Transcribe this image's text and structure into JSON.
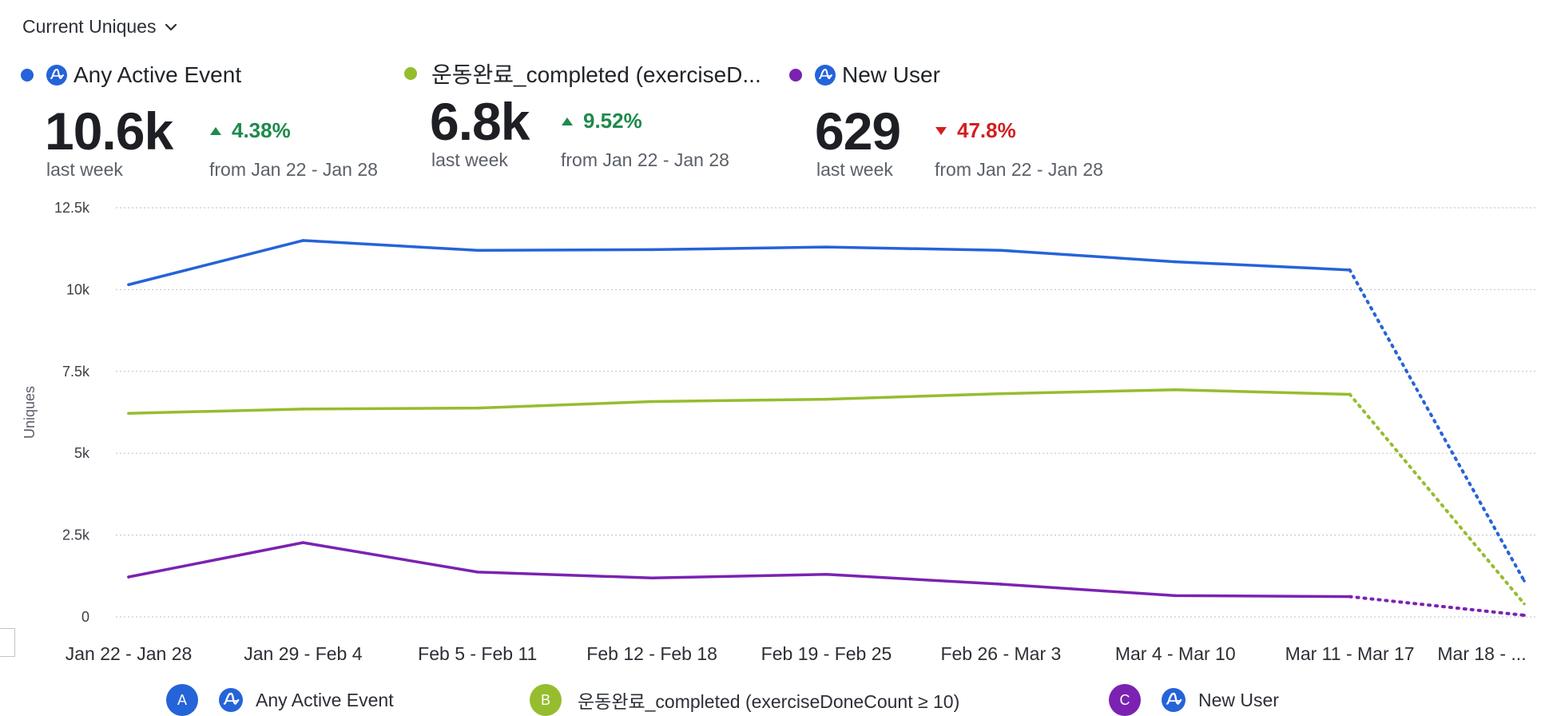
{
  "header": {
    "metric_selector": "Current Uniques"
  },
  "kpis": [
    {
      "name": "Any Active Event",
      "dot_color": "#2563d9",
      "value": "10.6k",
      "period": "last week",
      "delta": "4.38%",
      "direction": "up",
      "delta_color": "#1e8a4c",
      "compare": "from Jan 22 - Jan 28"
    },
    {
      "name": "운동완료_completed (exerciseD...",
      "dot_color": "#95bd2e",
      "value": "6.8k",
      "period": "last week",
      "delta": "9.52%",
      "direction": "up",
      "delta_color": "#1e8a4c",
      "compare": "from Jan 22 - Jan 28"
    },
    {
      "name": "New User",
      "dot_color": "#7b22b2",
      "value": "629",
      "period": "last week",
      "delta": "47.8%",
      "direction": "down",
      "delta_color": "#d21f1f",
      "compare": "from Jan 22 - Jan 28"
    }
  ],
  "chart_data": {
    "type": "line",
    "title": "",
    "ylabel": "Uniques",
    "xlabel": "",
    "ylim": [
      0,
      12500
    ],
    "yticks": [
      0,
      2500,
      5000,
      7500,
      10000,
      12500
    ],
    "ytick_labels": [
      "0",
      "2.5k",
      "5k",
      "7.5k",
      "10k",
      "12.5k"
    ],
    "categories": [
      "Jan 22 - Jan 28",
      "Jan 29 - Feb 4",
      "Feb 5 - Feb 11",
      "Feb 12 - Feb 18",
      "Feb 19 - Feb 25",
      "Feb 26 - Mar 3",
      "Mar 4 - Mar 10",
      "Mar 11 - Mar 17",
      "Mar 18 - ..."
    ],
    "grid": true,
    "incomplete_last_point": true,
    "series": [
      {
        "name": "Any Active Event",
        "color": "#2563d9",
        "values": [
          10150,
          11500,
          11200,
          11220,
          11300,
          11200,
          10850,
          10600,
          1100
        ]
      },
      {
        "name": "운동완료_completed (exerciseDoneCount ≥ 10)",
        "color": "#95bd2e",
        "values": [
          6220,
          6350,
          6380,
          6580,
          6650,
          6820,
          6940,
          6800,
          400
        ]
      },
      {
        "name": "New User",
        "color": "#7b22b2",
        "values": [
          1220,
          2270,
          1370,
          1190,
          1300,
          1000,
          650,
          620,
          50
        ]
      }
    ]
  },
  "legend": [
    {
      "badge": "A",
      "name": "Any Active Event",
      "color": "#2563d9"
    },
    {
      "badge": "B",
      "name": "운동완료_completed (exerciseDoneCount ≥ 10)",
      "color": "#95bd2e"
    },
    {
      "badge": "C",
      "name": "New User",
      "color": "#7b22b2"
    }
  ]
}
